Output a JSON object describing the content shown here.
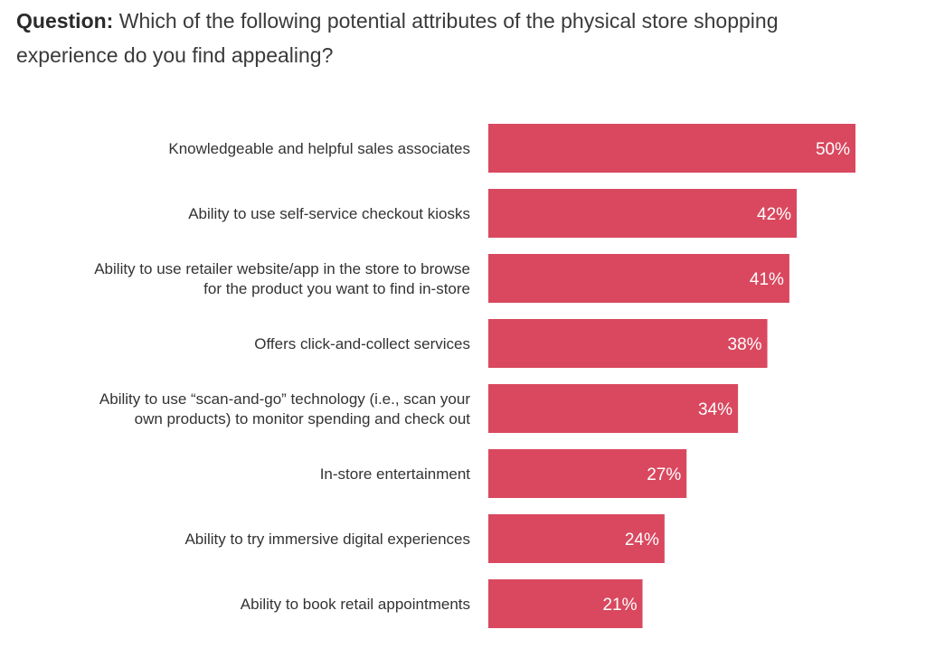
{
  "question": {
    "label": "Question:",
    "text": "Which of the following potential attributes of the physical store shopping experience do you find appealing?"
  },
  "colors": {
    "bar": "#d9485f",
    "label_text": "#333333",
    "value_text": "#ffffff"
  },
  "chart_data": {
    "type": "bar",
    "orientation": "horizontal",
    "categories": [
      [
        "Knowledgeable and helpful sales associates"
      ],
      [
        "Ability to use self-service checkout kiosks"
      ],
      [
        "Ability to use retailer website/app in the store to browse",
        "for the product you want to find in-store"
      ],
      [
        "Offers click-and-collect services"
      ],
      [
        "Ability to use “scan-and-go” technology (i.e., scan your",
        "own products) to monitor spending and check out"
      ],
      [
        "In-store entertainment"
      ],
      [
        "Ability to try immersive digital experiences"
      ],
      [
        "Ability to book retail appointments"
      ]
    ],
    "values": [
      50,
      42,
      41,
      38,
      34,
      27,
      24,
      21
    ],
    "value_labels": [
      "50%",
      "42%",
      "41%",
      "38%",
      "34%",
      "27%",
      "24%",
      "21%"
    ],
    "unit": "%",
    "xlim": [
      0,
      60
    ],
    "grid": false,
    "legend": "none"
  }
}
